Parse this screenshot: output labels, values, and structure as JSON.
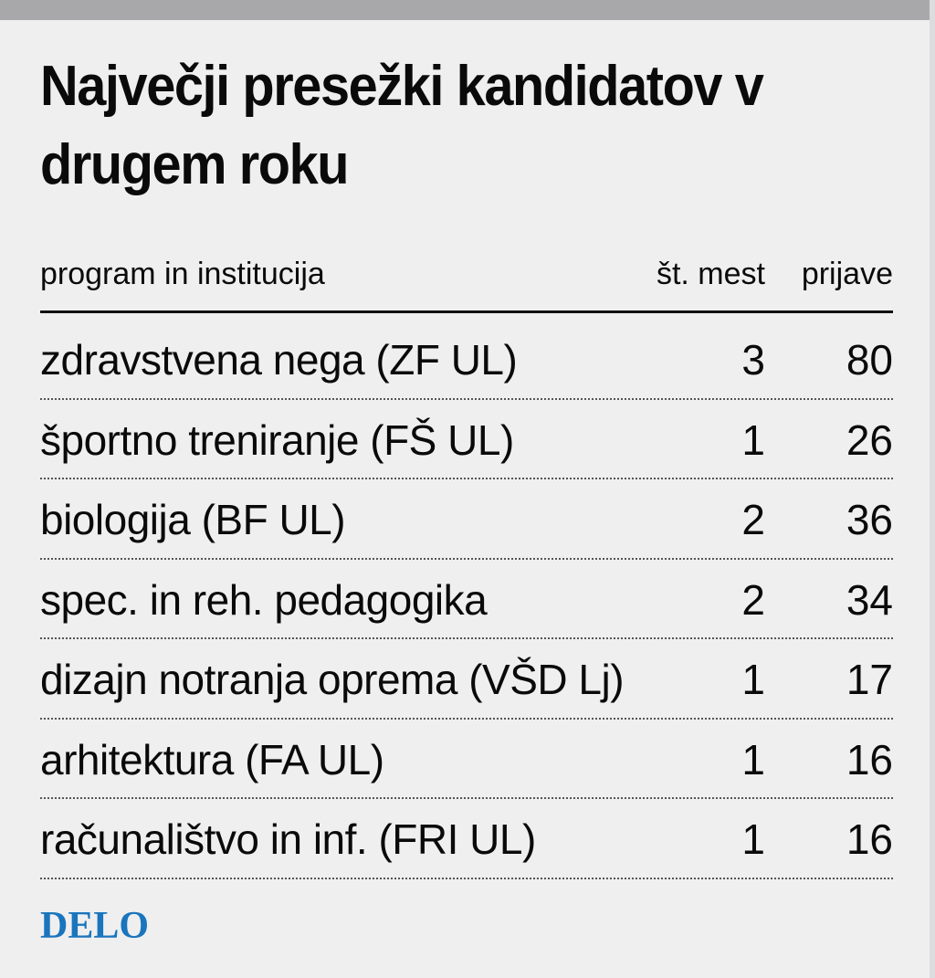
{
  "title": "Največji presežki kandidatov v drugem roku",
  "columns": {
    "program": "program in institucija",
    "mest": "št. mest",
    "prijave": "prijave"
  },
  "logo": "DELO",
  "colors": {
    "background": "#efeff0",
    "top_bar": "#a8a8ab",
    "logo": "#1a75bd",
    "text": "#0a0a0a"
  },
  "chart_data": {
    "type": "table",
    "title": "Največji presežki kandidatov v drugem roku",
    "columns": [
      "program in institucija",
      "št. mest",
      "prijave"
    ],
    "rows": [
      {
        "program": "zdravstvena nega (ZF UL)",
        "mest": 3,
        "prijave": 80
      },
      {
        "program": "športno treniranje (FŠ UL)",
        "mest": 1,
        "prijave": 26
      },
      {
        "program": "biologija (BF UL)",
        "mest": 2,
        "prijave": 36
      },
      {
        "program": "spec. in reh. pedagogika",
        "mest": 2,
        "prijave": 34
      },
      {
        "program": "dizajn notranja oprema (VŠD Lj)",
        "mest": 1,
        "prijave": 17
      },
      {
        "program": "arhitektura (FA UL)",
        "mest": 1,
        "prijave": 16
      },
      {
        "program": "računalištvo in inf. (FRI UL)",
        "mest": 1,
        "prijave": 16
      }
    ]
  }
}
